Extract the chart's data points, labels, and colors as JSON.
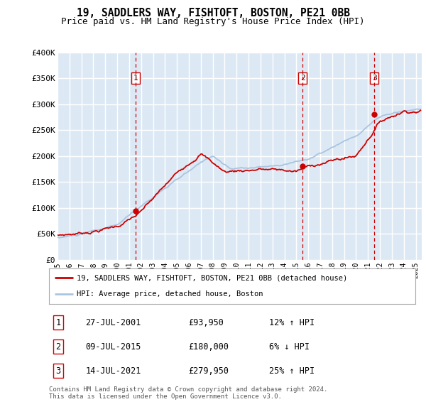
{
  "title": "19, SADDLERS WAY, FISHTOFT, BOSTON, PE21 0BB",
  "subtitle": "Price paid vs. HM Land Registry's House Price Index (HPI)",
  "ylim": [
    0,
    400000
  ],
  "yticks": [
    0,
    50000,
    100000,
    150000,
    200000,
    250000,
    300000,
    350000,
    400000
  ],
  "ytick_labels": [
    "£0",
    "£50K",
    "£100K",
    "£150K",
    "£200K",
    "£250K",
    "£300K",
    "£350K",
    "£400K"
  ],
  "hpi_color": "#aac4e0",
  "price_color": "#cc0000",
  "vline_color": "#cc0000",
  "plot_bg_color": "#dce9f5",
  "grid_color": "#ffffff",
  "legend_label_price": "19, SADDLERS WAY, FISHTOFT, BOSTON, PE21 0BB (detached house)",
  "legend_label_hpi": "HPI: Average price, detached house, Boston",
  "sales": [
    {
      "num": 1,
      "date": "27-JUL-2001",
      "price": 93950,
      "pct": "12%",
      "dir": "↑",
      "x_year": 2001.56
    },
    {
      "num": 2,
      "date": "09-JUL-2015",
      "price": 180000,
      "pct": "6%",
      "dir": "↓",
      "x_year": 2015.52
    },
    {
      "num": 3,
      "date": "14-JUL-2021",
      "price": 279950,
      "pct": "25%",
      "dir": "↑",
      "x_year": 2021.53
    }
  ],
  "xlim_start": 1995.0,
  "xlim_end": 2025.5,
  "footer": "Contains HM Land Registry data © Crown copyright and database right 2024.\nThis data is licensed under the Open Government Licence v3.0."
}
